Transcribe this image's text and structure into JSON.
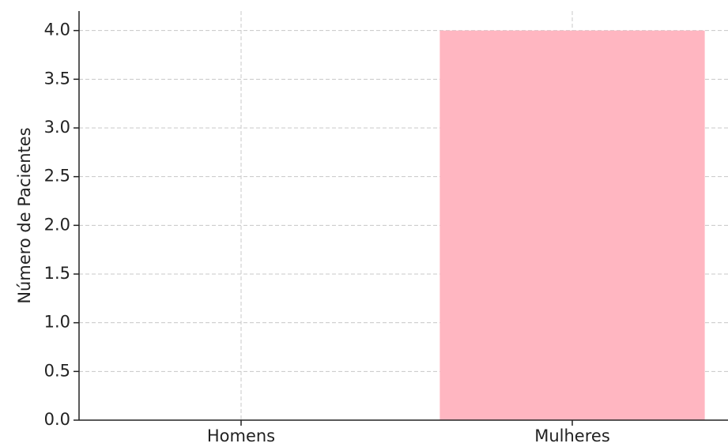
{
  "chart_data": {
    "type": "bar",
    "y_label": "Número de Pacientes",
    "categories": [
      "Homens",
      "Mulheres"
    ],
    "values": [
      0,
      4
    ],
    "color": "#ffb6c1",
    "ylim": [
      0,
      4.2
    ],
    "yticks": [
      {
        "value": 0,
        "label": "0.0"
      },
      0.5,
      {
        "value": 1,
        "label": "1.0"
      },
      1.5,
      {
        "value": 2,
        "label": "2.0"
      },
      2.5,
      {
        "value": 3,
        "label": "3.0"
      },
      3.5,
      {
        "value": 4,
        "label": "4.0"
      }
    ],
    "grid": true
  }
}
